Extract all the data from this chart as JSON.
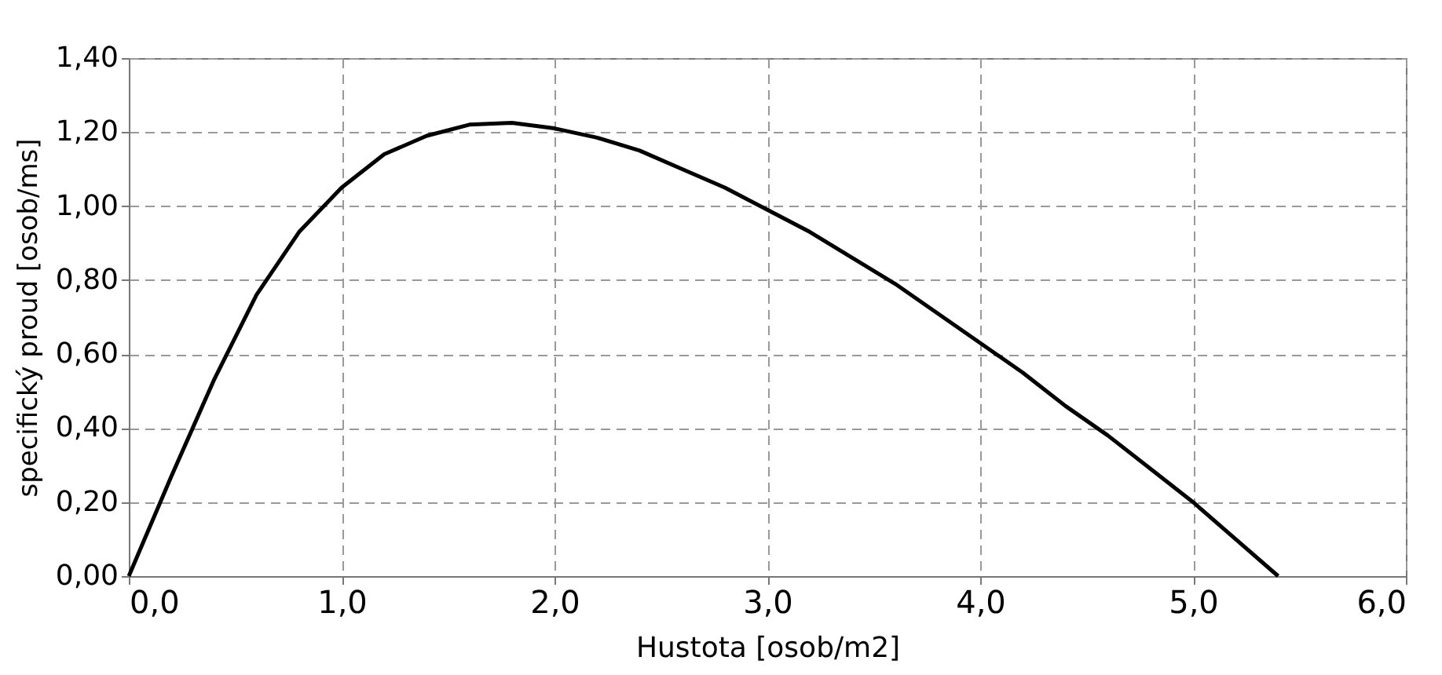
{
  "chart_data": {
    "type": "line",
    "xlabel": "Hustota [osob/m2]",
    "ylabel": "specifický proud [osob/ms]",
    "x": [
      0,
      0.2,
      0.4,
      0.6,
      0.8,
      1.0,
      1.2,
      1.4,
      1.6,
      1.8,
      2.0,
      2.2,
      2.4,
      2.6,
      2.8,
      3.0,
      3.2,
      3.4,
      3.6,
      3.8,
      4.0,
      4.2,
      4.4,
      4.6,
      4.8,
      5.0,
      5.2,
      5.4
    ],
    "series": [
      {
        "color": "#000000",
        "values": [
          0,
          0.27,
          0.53,
          0.76,
          0.93,
          1.05,
          1.14,
          1.19,
          1.22,
          1.225,
          1.21,
          1.185,
          1.15,
          1.1,
          1.05,
          0.99,
          0.93,
          0.86,
          0.79,
          0.71,
          0.63,
          0.55,
          0.46,
          0.38,
          0.29,
          0.2,
          0.1,
          0
        ]
      }
    ],
    "xlim": [
      0,
      6
    ],
    "ylim": [
      0,
      1.4
    ],
    "xticks": [
      {
        "value": 0,
        "label": "0,0"
      },
      {
        "value": 1,
        "label": "1,0"
      },
      {
        "value": 2,
        "label": "2,0"
      },
      {
        "value": 3,
        "label": "3,0"
      },
      {
        "value": 4,
        "label": "4,0"
      },
      {
        "value": 5,
        "label": "5,0"
      },
      {
        "value": 6,
        "label": "6,0"
      }
    ],
    "yticks": [
      {
        "value": 0,
        "label": "0,00"
      },
      {
        "value": 0.2,
        "label": "0,20"
      },
      {
        "value": 0.4,
        "label": "0,40"
      },
      {
        "value": 0.6,
        "label": "0,60"
      },
      {
        "value": 0.8,
        "label": "0,80"
      },
      {
        "value": 1.0,
        "label": "1,00"
      },
      {
        "value": 1.2,
        "label": "1,20"
      },
      {
        "value": 1.4,
        "label": "1,40"
      }
    ],
    "grid": true,
    "line_style": "solid",
    "marker": "none"
  }
}
